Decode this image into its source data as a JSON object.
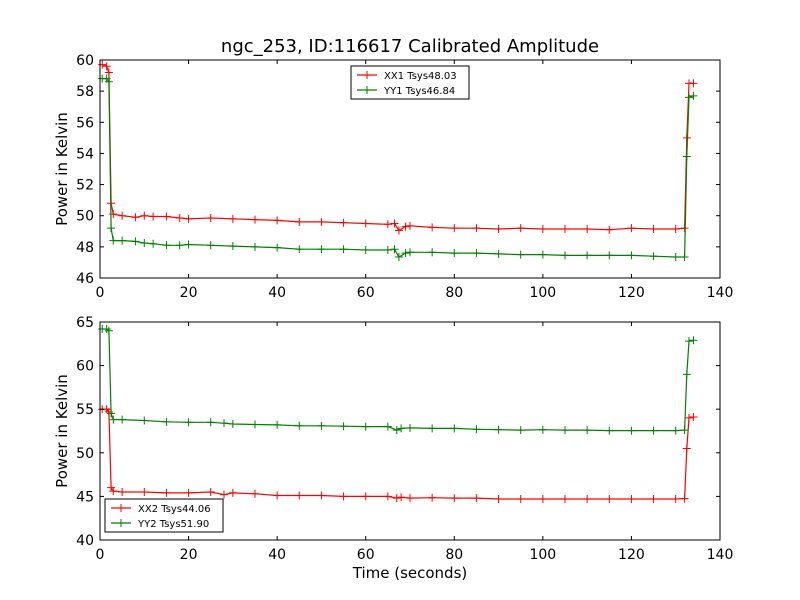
{
  "title": "ngc_253, ID:116617 Calibrated Amplitude",
  "chart_data": [
    {
      "type": "line",
      "title": "ngc_253, ID:116617 Calibrated Amplitude",
      "xlabel": "",
      "ylabel": "Power in Kelvin",
      "xlim": [
        0,
        140
      ],
      "ylim": [
        46,
        60
      ],
      "xticks": [
        0,
        20,
        40,
        60,
        80,
        100,
        120,
        140
      ],
      "yticks": [
        46,
        48,
        50,
        52,
        54,
        56,
        58,
        60
      ],
      "grid": false,
      "legend_position": "top-center",
      "marker": "+",
      "series": [
        {
          "name": "XX1 Tsys48.03",
          "color": "#ff0000",
          "x": [
            0.5,
            1.5,
            2.0,
            2.5,
            3,
            5,
            8,
            10,
            12,
            15,
            18,
            20,
            25,
            30,
            35,
            40,
            45,
            50,
            55,
            60,
            65,
            66.5,
            67.5,
            69,
            70,
            75,
            80,
            85,
            90,
            95,
            100,
            105,
            110,
            115,
            120,
            125,
            130,
            132,
            132.5,
            133,
            134
          ],
          "values": [
            59.7,
            59.6,
            59.2,
            50.8,
            50.1,
            50.0,
            49.9,
            50.0,
            49.95,
            49.95,
            49.85,
            49.8,
            49.85,
            49.8,
            49.75,
            49.7,
            49.6,
            49.6,
            49.55,
            49.5,
            49.45,
            49.5,
            49.05,
            49.3,
            49.35,
            49.25,
            49.2,
            49.2,
            49.15,
            49.2,
            49.15,
            49.15,
            49.15,
            49.1,
            49.2,
            49.15,
            49.15,
            49.2,
            55.0,
            58.5,
            58.5
          ]
        },
        {
          "name": "YY1 Tsys46.84",
          "color": "#008000",
          "x": [
            0.5,
            1.5,
            2.0,
            2.5,
            3,
            5,
            8,
            10,
            12,
            15,
            18,
            20,
            25,
            30,
            35,
            40,
            45,
            50,
            55,
            60,
            65,
            66.5,
            67.5,
            69,
            70,
            75,
            80,
            85,
            90,
            95,
            100,
            105,
            110,
            115,
            120,
            125,
            130,
            132,
            132.5,
            133,
            134
          ],
          "values": [
            58.8,
            58.8,
            58.6,
            49.2,
            48.4,
            48.4,
            48.35,
            48.25,
            48.2,
            48.1,
            48.1,
            48.15,
            48.1,
            48.05,
            48.0,
            47.95,
            47.85,
            47.85,
            47.85,
            47.8,
            47.8,
            47.85,
            47.35,
            47.6,
            47.65,
            47.65,
            47.6,
            47.6,
            47.55,
            47.5,
            47.5,
            47.45,
            47.45,
            47.45,
            47.45,
            47.4,
            47.35,
            47.35,
            53.8,
            57.6,
            57.7
          ]
        }
      ]
    },
    {
      "type": "line",
      "title": "",
      "xlabel": "Time (seconds)",
      "ylabel": "Power in Kelvin",
      "xlim": [
        0,
        140
      ],
      "ylim": [
        40,
        65
      ],
      "xticks": [
        0,
        20,
        40,
        60,
        80,
        100,
        120,
        140
      ],
      "yticks": [
        40,
        45,
        50,
        55,
        60,
        65
      ],
      "grid": false,
      "legend_position": "bottom-left",
      "marker": "+",
      "series": [
        {
          "name": "XX2 Tsys44.06",
          "color": "#ff0000",
          "x": [
            0.5,
            1.5,
            2.0,
            2.5,
            3,
            5,
            10,
            15,
            20,
            25,
            28,
            30,
            35,
            40,
            45,
            50,
            55,
            60,
            65,
            67,
            68,
            70,
            75,
            80,
            85,
            90,
            95,
            100,
            105,
            110,
            115,
            120,
            125,
            130,
            132,
            132.5,
            133,
            134
          ],
          "values": [
            55.0,
            55.0,
            54.7,
            46.0,
            45.6,
            45.5,
            45.5,
            45.4,
            45.4,
            45.5,
            45.2,
            45.4,
            45.3,
            45.1,
            45.1,
            45.1,
            45.0,
            45.0,
            45.0,
            44.8,
            44.9,
            44.8,
            44.85,
            44.8,
            44.8,
            44.7,
            44.7,
            44.7,
            44.7,
            44.7,
            44.7,
            44.7,
            44.7,
            44.7,
            44.75,
            50.5,
            54.0,
            54.1
          ]
        },
        {
          "name": "YY2 Tsys51.90",
          "color": "#008000",
          "x": [
            0.5,
            1.5,
            2.0,
            2.5,
            3,
            5,
            10,
            15,
            20,
            25,
            28,
            30,
            35,
            40,
            45,
            50,
            55,
            60,
            65,
            67,
            68,
            70,
            75,
            80,
            85,
            90,
            95,
            100,
            105,
            110,
            115,
            120,
            125,
            130,
            132,
            132.5,
            133,
            134
          ],
          "values": [
            64.2,
            64.2,
            64.0,
            54.5,
            53.8,
            53.8,
            53.7,
            53.55,
            53.5,
            53.5,
            53.4,
            53.3,
            53.25,
            53.2,
            53.1,
            53.1,
            53.05,
            53.0,
            53.0,
            52.6,
            52.8,
            52.85,
            52.8,
            52.8,
            52.7,
            52.65,
            52.6,
            52.65,
            52.6,
            52.6,
            52.55,
            52.55,
            52.55,
            52.55,
            52.6,
            59.0,
            62.8,
            62.9
          ]
        }
      ]
    }
  ]
}
